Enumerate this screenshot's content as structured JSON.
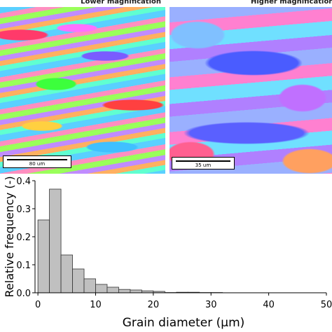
{
  "panels": [
    {
      "label": "Lower magnification",
      "scale_bar": "80 um"
    },
    {
      "label": "Higher magnification",
      "scale_bar": "35 um"
    }
  ],
  "chart_data": {
    "type": "histogram",
    "bins": [
      0,
      2,
      4,
      6,
      8,
      10,
      12,
      14,
      16,
      18,
      20,
      22,
      24,
      26,
      28,
      30,
      32
    ],
    "values": [
      0.26,
      0.37,
      0.135,
      0.085,
      0.05,
      0.03,
      0.02,
      0.012,
      0.01,
      0.007,
      0.005,
      0.001,
      0.002,
      0.002,
      0.001,
      0.001
    ],
    "color": "#c0c0c0",
    "xlabel": "Grain diameter (μm)",
    "ylabel": "Relative frequency (-)",
    "xlim": [
      -0.5,
      50
    ],
    "xticks": [
      0,
      10,
      20,
      30,
      40,
      50
    ],
    "ylim": [
      0,
      0.4
    ],
    "yticks": [
      {
        "value": 0,
        "label": "0.0"
      },
      0.1,
      0.2,
      0.3,
      0.4
    ]
  }
}
